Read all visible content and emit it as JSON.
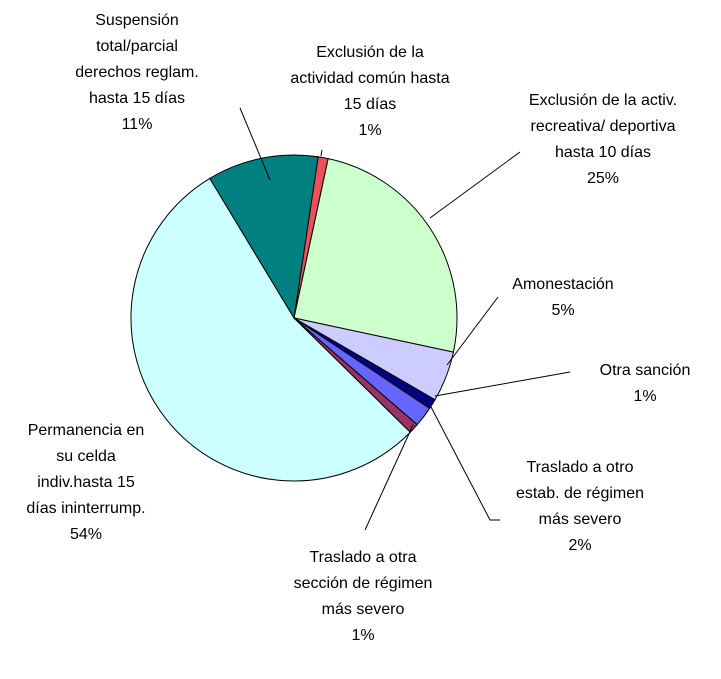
{
  "chart_data": {
    "type": "pie",
    "categories": [
      "Exclusión de la actividad común hasta 15 días",
      "Exclusión de la activ. recreativa/ deportiva hasta 10 días",
      "Amonestación",
      "Otra sanción",
      "Traslado a otro estab. de régimen más severo",
      "Traslado a otra sección de régimen más severo",
      "Permanencia en su celda indiv.hasta 15 días ininterrump.",
      "Suspensión total/parcial derechos reglam. hasta 15 días"
    ],
    "values": [
      1,
      25,
      5,
      1,
      2,
      1,
      54,
      11
    ],
    "value_labels": [
      "1%",
      "25%",
      "5%",
      "1%",
      "2%",
      "1%",
      "54%",
      "11%"
    ],
    "colors": [
      "#e8505a",
      "#ccffcc",
      "#ccccff",
      "#000080",
      "#6666ff",
      "#993366",
      "#ccffff",
      "#008080"
    ]
  }
}
